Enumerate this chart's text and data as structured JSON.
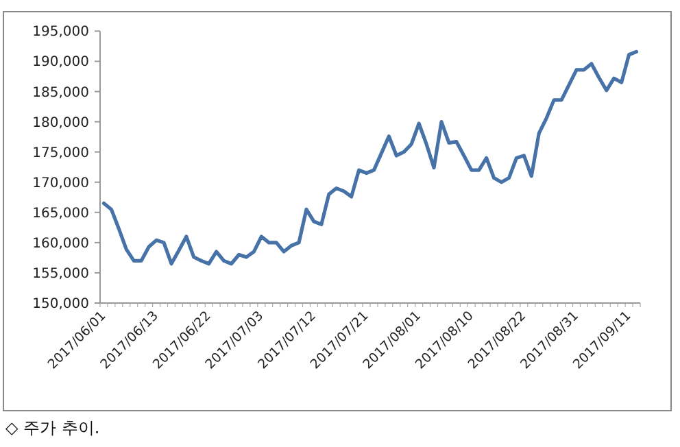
{
  "chart_data": {
    "type": "line",
    "categories": [
      "2017/06/01",
      null,
      null,
      null,
      null,
      null,
      null,
      "2017/06/13",
      null,
      null,
      null,
      null,
      null,
      null,
      "2017/06/22",
      null,
      null,
      null,
      null,
      null,
      null,
      "2017/07/03",
      null,
      null,
      null,
      null,
      null,
      null,
      "2017/07/12",
      null,
      null,
      null,
      null,
      null,
      null,
      "2017/07/21",
      null,
      null,
      null,
      null,
      null,
      null,
      "2017/08/01",
      null,
      null,
      null,
      null,
      null,
      null,
      "2017/08/10",
      null,
      null,
      null,
      null,
      null,
      null,
      "2017/08/22",
      null,
      null,
      null,
      null,
      null,
      null,
      "2017/08/31",
      null,
      null,
      null,
      null,
      null,
      null,
      "2017/09/11",
      null
    ],
    "values": [
      166500,
      165500,
      162300,
      158900,
      157000,
      157000,
      159300,
      160400,
      160000,
      156500,
      158700,
      161000,
      157600,
      157000,
      156500,
      158500,
      157000,
      156500,
      158000,
      157600,
      158500,
      161000,
      160000,
      160000,
      158500,
      159500,
      160000,
      165500,
      163500,
      163000,
      168000,
      169000,
      168500,
      167600,
      172000,
      171500,
      172000,
      174800,
      177600,
      174400,
      175000,
      176300,
      179700,
      176300,
      172400,
      180000,
      176500,
      176700,
      174400,
      172000,
      172000,
      174000,
      170700,
      170000,
      170700,
      174000,
      174400,
      171000,
      178100,
      180600,
      183600,
      183600,
      186100,
      188600,
      188600,
      189600,
      187300,
      185200,
      187200,
      186500,
      191100,
      191600
    ],
    "color": "#4672a8",
    "ylim": [
      150000,
      195000
    ],
    "yticks": [
      {
        "value": 150000,
        "label": "150,000"
      },
      {
        "value": 155000,
        "label": "155,000"
      },
      {
        "value": 160000,
        "label": "160,000"
      },
      {
        "value": 165000,
        "label": "165,000"
      },
      {
        "value": 170000,
        "label": "170,000"
      },
      {
        "value": 175000,
        "label": "175,000"
      },
      {
        "value": 180000,
        "label": "180,000"
      },
      {
        "value": 185000,
        "label": "185,000"
      },
      {
        "value": 190000,
        "label": "190,000"
      },
      {
        "value": 195000,
        "label": "195,000"
      }
    ],
    "annotations": [
      "◇ 주가 추이."
    ]
  }
}
